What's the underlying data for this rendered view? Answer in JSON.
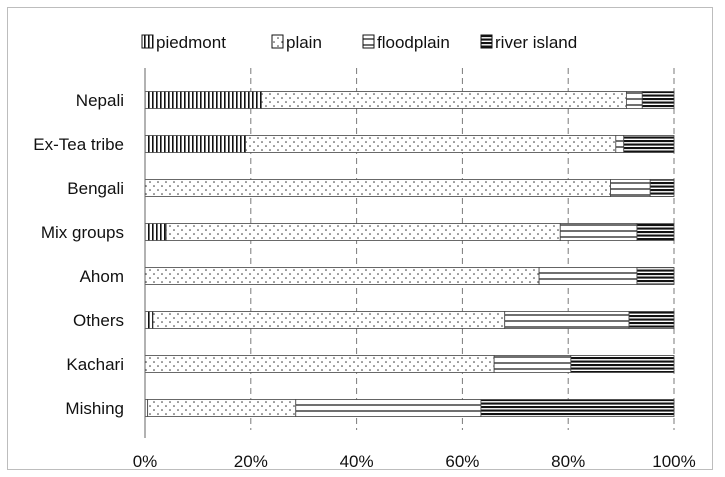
{
  "chart_data": {
    "type": "bar",
    "orientation": "horizontal",
    "stacked": "percent",
    "title": "",
    "xlabel": "",
    "ylabel": "",
    "xlim": [
      0,
      100
    ],
    "grid": "vertical-dashed",
    "legend_position": "top",
    "categories": [
      "Nepali",
      "Ex-Tea tribe",
      "Bengali",
      "Mix groups",
      "Ahom",
      "Others",
      "Kachari",
      "Mishing"
    ],
    "x_ticks": [
      "0%",
      "20%",
      "40%",
      "60%",
      "80%",
      "100%"
    ],
    "series": [
      {
        "name": "piedmont",
        "pattern": "vertical-stripes",
        "values": [
          22,
          19,
          0,
          4,
          0,
          1.5,
          0,
          0.5
        ]
      },
      {
        "name": "plain",
        "pattern": "dots",
        "values": [
          69,
          70,
          88,
          74.5,
          74.5,
          66.5,
          66,
          28
        ]
      },
      {
        "name": "floodplain",
        "pattern": "horizontal-lines",
        "values": [
          3,
          1.5,
          7.5,
          14.5,
          18.5,
          23.5,
          14.5,
          35
        ]
      },
      {
        "name": "river island",
        "pattern": "dense-horizontal-lines",
        "values": [
          6,
          9.5,
          4.5,
          7,
          7,
          8.5,
          19.5,
          36.5
        ]
      }
    ]
  }
}
